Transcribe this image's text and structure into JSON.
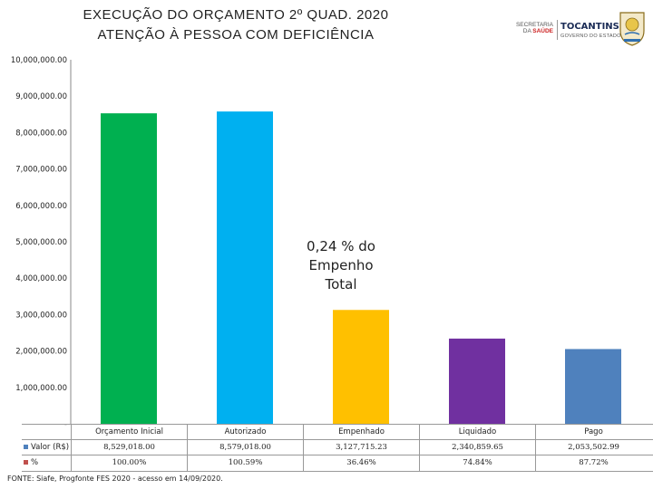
{
  "header": {
    "title_line1": "EXECUÇÃO DO ORÇAMENTO 2º QUAD. 2020",
    "title_line2": "ATENÇÃO À PESSOA COM DEFICIÊNCIA"
  },
  "logos": {
    "secretaria_line1": "SECRETARIA",
    "secretaria_line2": "DA",
    "secretaria_saude": "SAÚDE",
    "tocantins": "TOCANTINS",
    "governo": "GOVERNO DO ESTADO",
    "seal_icon": "state-seal-icon"
  },
  "chart_data": {
    "type": "bar",
    "title": "EXECUÇÃO DO ORÇAMENTO 2º QUAD. 2020",
    "subtitle": "ATENÇÃO À PESSOA COM DEFICIÊNCIA",
    "categories": [
      "Orçamento Inicial",
      "Autorizado",
      "Empenhado",
      "Liquidado",
      "Pago"
    ],
    "series": [
      {
        "name": "Valor (R$)",
        "values": [
          8529018.0,
          8579018.0,
          3127715.23,
          2340859.65,
          2053502.99
        ],
        "labels": [
          "8,529,018.00",
          "8,579,018.00",
          "3,127,715.23",
          "2,340,859.65",
          "2,053,502.99"
        ]
      },
      {
        "name": "%",
        "values": [
          100.0,
          100.59,
          36.46,
          74.84,
          87.72
        ],
        "labels": [
          "100.00%",
          "100.59%",
          "36.46%",
          "74.84%",
          "87.72%"
        ]
      }
    ],
    "bar_colors": [
      "#00b050",
      "#00b0f0",
      "#ffc000",
      "#7030a0",
      "#4f81bd"
    ],
    "legend_colors": [
      "#4f81bd",
      "#c0504d"
    ],
    "ylim": [
      0,
      10000000
    ],
    "yticks": [
      0,
      1000000,
      2000000,
      3000000,
      4000000,
      5000000,
      6000000,
      7000000,
      8000000,
      9000000,
      10000000
    ],
    "ytick_labels": [
      "-",
      "1,000,000.00",
      "2,000,000.00",
      "3,000,000.00",
      "4,000,000.00",
      "5,000,000.00",
      "6,000,000.00",
      "7,000,000.00",
      "8,000,000.00",
      "9,000,000.00",
      "10,000,000.00"
    ],
    "grid": false,
    "legend": "data-table",
    "annotation": [
      "0,24 % do",
      "Empenho",
      "Total"
    ]
  },
  "footer": {
    "source": "FONTE: Siafe, Progfonte FES 2020 - acesso em 14/09/2020."
  }
}
